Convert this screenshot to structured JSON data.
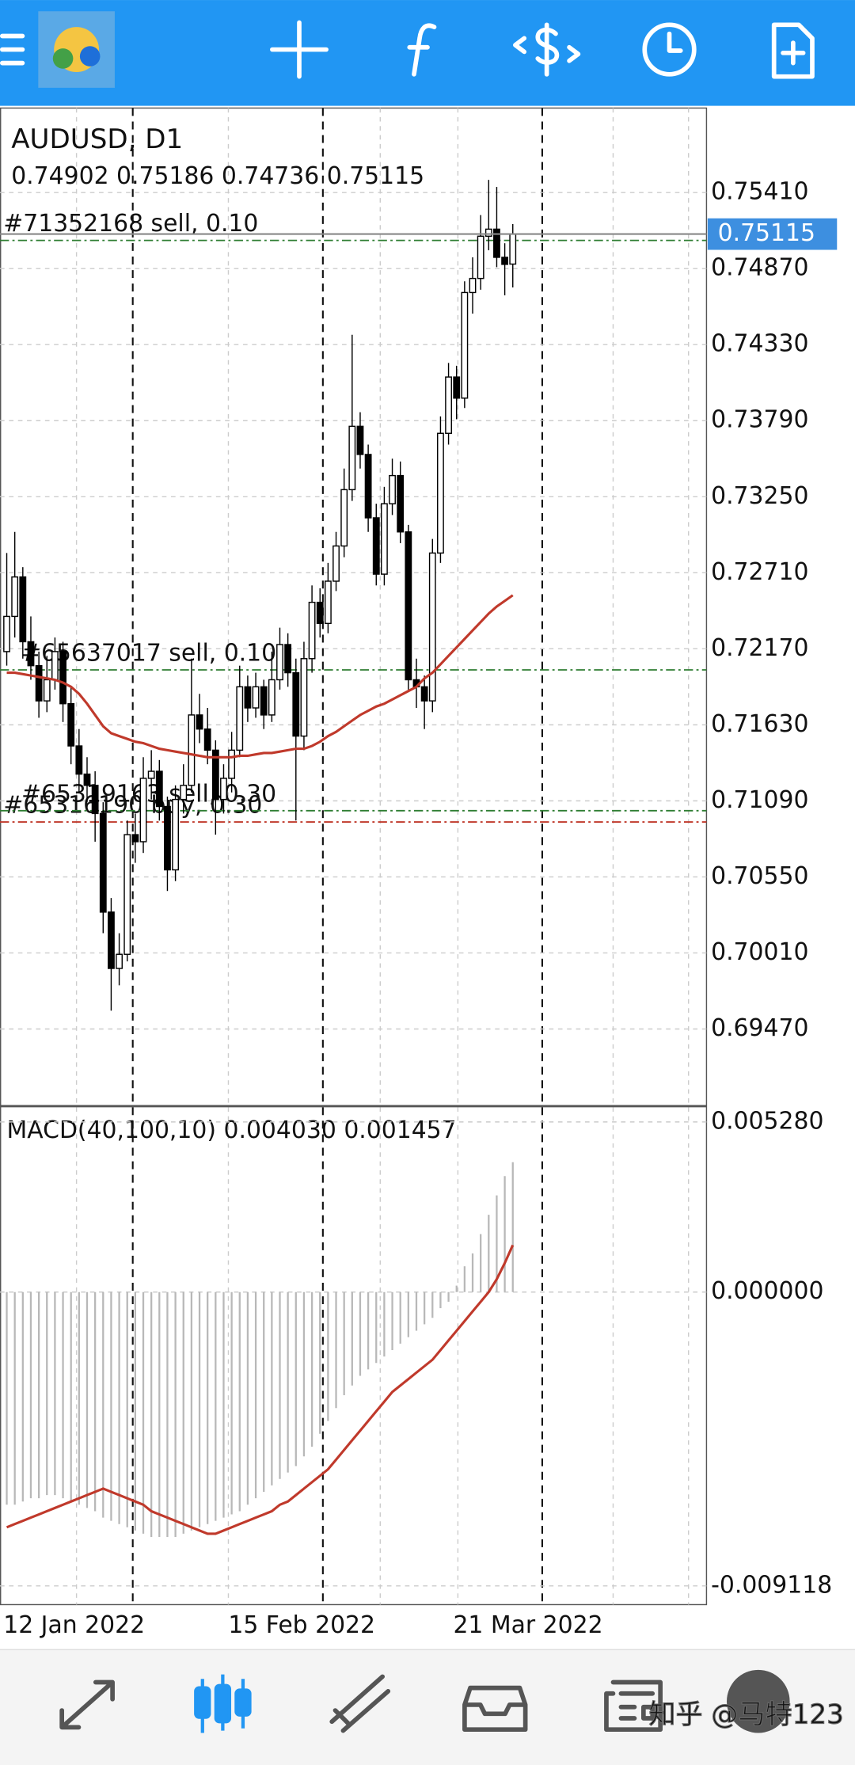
{
  "chart_data": {
    "type": "candlestick",
    "title": "AUDUSD, D1",
    "categories": [
      "12 Jan 2022",
      null,
      null,
      null,
      null,
      null,
      null,
      null,
      null,
      null,
      null,
      null,
      null,
      null,
      null,
      null,
      null,
      null,
      null,
      null,
      null,
      null,
      null,
      null,
      null,
      null,
      null,
      null,
      "15 Feb 2022",
      null,
      null,
      null,
      null,
      null,
      null,
      null,
      null,
      null,
      null,
      null,
      null,
      null,
      null,
      null,
      null,
      null,
      null,
      null,
      null,
      null,
      null,
      null,
      null,
      null,
      null,
      null,
      "21 Mar 2022",
      null,
      null,
      null,
      null,
      null,
      null,
      null
    ],
    "open": [
      0.7215,
      0.724,
      0.7268,
      0.7222,
      0.7205,
      0.718,
      0.7195,
      0.7215,
      0.7178,
      0.7148,
      0.7128,
      0.712,
      0.71,
      0.703,
      0.699,
      0.7,
      0.7085,
      0.708,
      0.7125,
      0.713,
      0.7105,
      0.706,
      0.711,
      0.712,
      0.717,
      0.716,
      0.7145,
      0.711,
      0.7125,
      0.7145,
      0.719,
      0.7175,
      0.719,
      0.717,
      0.7195,
      0.722,
      0.72,
      0.7155,
      0.721,
      0.725,
      0.7235,
      0.7265,
      0.729,
      0.733,
      0.7375,
      0.7355,
      0.731,
      0.727,
      0.732,
      0.734,
      0.73,
      0.7195,
      0.719,
      0.718,
      0.7285,
      0.737,
      0.741,
      0.7395,
      0.747,
      0.748,
      0.751,
      0.7515,
      0.7495,
      0.74902
    ],
    "high": [
      0.7285,
      0.73,
      0.7275,
      0.724,
      0.7215,
      0.7212,
      0.7225,
      0.7222,
      0.719,
      0.716,
      0.714,
      0.713,
      0.7108,
      0.704,
      0.7015,
      0.7095,
      0.71,
      0.714,
      0.7145,
      0.7138,
      0.7112,
      0.712,
      0.7135,
      0.721,
      0.7185,
      0.7175,
      0.7152,
      0.7135,
      0.7158,
      0.7205,
      0.7198,
      0.72,
      0.7195,
      0.7215,
      0.7232,
      0.7228,
      0.721,
      0.7222,
      0.7262,
      0.726,
      0.7278,
      0.73,
      0.7345,
      0.744,
      0.7385,
      0.7362,
      0.732,
      0.7332,
      0.7352,
      0.735,
      0.7305,
      0.721,
      0.7198,
      0.7295,
      0.7382,
      0.742,
      0.7418,
      0.7478,
      0.7495,
      0.7525,
      0.755,
      0.7545,
      0.7505,
      0.75186
    ],
    "low": [
      0.7205,
      0.7225,
      0.721,
      0.7195,
      0.7168,
      0.7172,
      0.7188,
      0.7165,
      0.7135,
      0.7115,
      0.7108,
      0.708,
      0.7015,
      0.696,
      0.6978,
      0.6995,
      0.7065,
      0.7072,
      0.711,
      0.7095,
      0.7045,
      0.7052,
      0.71,
      0.7115,
      0.715,
      0.7135,
      0.7085,
      0.71,
      0.7115,
      0.714,
      0.7165,
      0.7168,
      0.716,
      0.7165,
      0.7188,
      0.719,
      0.7095,
      0.7145,
      0.72,
      0.7225,
      0.7228,
      0.7258,
      0.7282,
      0.7322,
      0.7345,
      0.73,
      0.7262,
      0.7262,
      0.7312,
      0.7292,
      0.7188,
      0.7175,
      0.716,
      0.7172,
      0.7278,
      0.7362,
      0.738,
      0.7388,
      0.7455,
      0.7472,
      0.75,
      0.7488,
      0.7468,
      0.74736
    ],
    "close": [
      0.724,
      0.7268,
      0.7222,
      0.7205,
      0.718,
      0.7195,
      0.7215,
      0.7178,
      0.7148,
      0.7128,
      0.712,
      0.71,
      0.703,
      0.699,
      0.7,
      0.7085,
      0.708,
      0.7125,
      0.713,
      0.7105,
      0.706,
      0.711,
      0.712,
      0.717,
      0.716,
      0.7145,
      0.711,
      0.7125,
      0.7145,
      0.719,
      0.7175,
      0.719,
      0.717,
      0.7195,
      0.722,
      0.72,
      0.7155,
      0.721,
      0.725,
      0.7235,
      0.7265,
      0.729,
      0.733,
      0.7375,
      0.7355,
      0.731,
      0.727,
      0.732,
      0.734,
      0.73,
      0.7195,
      0.719,
      0.718,
      0.7285,
      0.737,
      0.741,
      0.7395,
      0.747,
      0.748,
      0.751,
      0.7515,
      0.7495,
      0.749,
      0.75115
    ],
    "up_color": "#ffffff",
    "down_color": "#000000",
    "ma": {
      "color": "#c0392b",
      "values": [
        0.72,
        0.72,
        0.7199,
        0.7198,
        0.7197,
        0.7196,
        0.7195,
        0.7193,
        0.719,
        0.7185,
        0.7178,
        0.717,
        0.7162,
        0.7157,
        0.7155,
        0.7153,
        0.7151,
        0.715,
        0.7148,
        0.7146,
        0.7145,
        0.7144,
        0.7143,
        0.7142,
        0.7141,
        0.714,
        0.714,
        0.714,
        0.714,
        0.7141,
        0.7141,
        0.7142,
        0.7143,
        0.7143,
        0.7144,
        0.7145,
        0.7146,
        0.7146,
        0.7148,
        0.7151,
        0.7155,
        0.7158,
        0.7162,
        0.7166,
        0.717,
        0.7173,
        0.7176,
        0.7178,
        0.7181,
        0.7184,
        0.7187,
        0.719,
        0.7196,
        0.72,
        0.7206,
        0.7212,
        0.7218,
        0.7224,
        0.723,
        0.7236,
        0.7242,
        0.7247,
        0.7251,
        0.7255
      ]
    },
    "ylim": [
      0.68922,
      0.7601
    ],
    "yticks": [
      {
        "value": 0.7541,
        "label": "0.75410"
      },
      {
        "value": 0.7487,
        "label": "0.74870"
      },
      {
        "value": 0.7433,
        "label": "0.74330"
      },
      {
        "value": 0.7379,
        "label": "0.73790"
      },
      {
        "value": 0.7325,
        "label": "0.73250"
      },
      {
        "value": 0.7271,
        "label": "0.72710"
      },
      {
        "value": 0.7217,
        "label": "0.72170"
      },
      {
        "value": 0.7163,
        "label": "0.71630"
      },
      {
        "value": 0.7109,
        "label": "0.71090"
      },
      {
        "value": 0.7055,
        "label": "0.70550"
      },
      {
        "value": 0.7001,
        "label": "0.70010"
      },
      {
        "value": 0.6947,
        "label": "0.69470"
      }
    ],
    "grid": true,
    "orders": [
      {
        "label": "#71352168 sell, 0.10",
        "price": 0.7507,
        "color": "#2e7d32"
      },
      {
        "label": "#65637017 sell, 0.10",
        "price": 0.7202,
        "color": "#2e7d32"
      },
      {
        "label": "#65316190 buy, 0.30",
        "price": 0.7094,
        "color": "#c0392b"
      },
      {
        "label": "#65319163 sell, 0.30",
        "price": 0.7102,
        "color": "#2e7d32"
      }
    ],
    "macd": {
      "title": "MACD(40,100,10)",
      "readout": [
        {
          "value": 0.00403,
          "label": "0.004030"
        },
        {
          "value": 0.001457,
          "label": "0.001457"
        }
      ],
      "hist": {
        "color": "#b8b8b8",
        "values": [
          -0.0066,
          -0.0066,
          -0.0065,
          -0.0064,
          -0.0064,
          -0.0063,
          -0.0063,
          -0.0064,
          -0.0065,
          -0.0066,
          -0.0067,
          -0.0068,
          -0.007,
          -0.0071,
          -0.0072,
          -0.0073,
          -0.0074,
          -0.0075,
          -0.0076,
          -0.0076,
          -0.0076,
          -0.0076,
          -0.0075,
          -0.0074,
          -0.0073,
          -0.0072,
          -0.0071,
          -0.007,
          -0.0069,
          -0.0068,
          -0.0066,
          -0.0064,
          -0.0062,
          -0.006,
          -0.0058,
          -0.0056,
          -0.0054,
          -0.0051,
          -0.0048,
          -0.0044,
          -0.004,
          -0.0036,
          -0.0032,
          -0.0029,
          -0.0026,
          -0.0024,
          -0.0022,
          -0.002,
          -0.0018,
          -0.0016,
          -0.0014,
          -0.0012,
          -0.001,
          -0.0008,
          -0.0005,
          -0.0003,
          0.0002,
          0.0008,
          0.0012,
          0.0018,
          0.0024,
          0.003,
          0.0036,
          0.00403
        ]
      },
      "signal": {
        "color": "#c0392b",
        "values": [
          -0.0073,
          -0.0072,
          -0.0071,
          -0.007,
          -0.0069,
          -0.0068,
          -0.0067,
          -0.0066,
          -0.0065,
          -0.0064,
          -0.0063,
          -0.0062,
          -0.0061,
          -0.0062,
          -0.0063,
          -0.0064,
          -0.0065,
          -0.0066,
          -0.0068,
          -0.0069,
          -0.007,
          -0.0071,
          -0.0072,
          -0.0073,
          -0.0074,
          -0.0075,
          -0.0075,
          -0.0074,
          -0.0073,
          -0.0072,
          -0.0071,
          -0.007,
          -0.0069,
          -0.0068,
          -0.0066,
          -0.0065,
          -0.0063,
          -0.0061,
          -0.0059,
          -0.0057,
          -0.0055,
          -0.0052,
          -0.0049,
          -0.0046,
          -0.0043,
          -0.004,
          -0.0037,
          -0.0034,
          -0.0031,
          -0.0029,
          -0.0027,
          -0.0025,
          -0.0023,
          -0.0021,
          -0.0018,
          -0.0015,
          -0.0012,
          -0.0009,
          -0.0006,
          -0.0003,
          0.0,
          0.0004,
          0.0009,
          0.001457
        ]
      },
      "ylim": [
        -0.0097,
        0.0057
      ],
      "yticks": [
        {
          "value": 0.00528,
          "label": "0.005280"
        },
        {
          "value": 0,
          "label": "0.000000"
        },
        {
          "value": -0.009118,
          "label": "-0.009118"
        }
      ]
    }
  },
  "watermark": "知乎 @马特123"
}
